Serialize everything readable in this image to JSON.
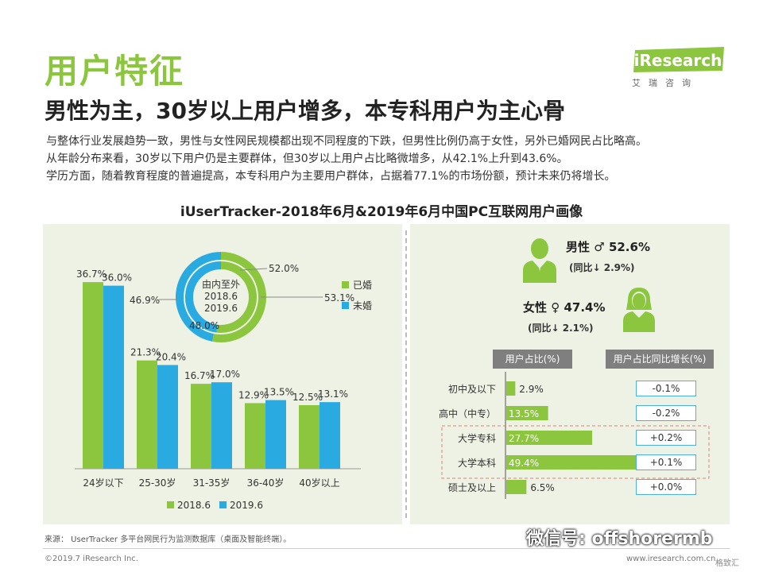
{
  "header": {
    "title": "用户特征",
    "subtitle": "男性为主，30岁以上用户增多，本专科用户为主心骨",
    "intro_lines": [
      "与整体行业发展趋势一致，男性与女性网民规模都出现不同程度的下跌，但男性比例仍高于女性，另外已婚网民占比略高。",
      "从年龄分布来看，30岁以下用户仍是主要群体，但30岁以上用户占比略微增多，从42.1%上升到43.6%。",
      "学历方面，随着教育程度的普遍提高，本专科用户为主要用户群体，占据着77.1%的市场份额，预计未来仍将增长。"
    ],
    "logo_text": "iResearch",
    "logo_sub": "艾瑞咨询"
  },
  "chart_title": "iUserTracker-2018年6月&2019年6月中国PC互联网用户画像",
  "colors": {
    "green": "#8cc63f",
    "blue": "#29abe2",
    "panel": "#eef2e4",
    "title_green": "#8cc63f"
  },
  "gender": {
    "male_label": "男性",
    "male_symbol": "♂",
    "male_value": "52.6%",
    "male_yoy": "(同比↓ 2.9%)",
    "female_label": "女性",
    "female_symbol": "♀",
    "female_value": "47.4%",
    "female_yoy": "(同比↓ 2.1%)"
  },
  "chart_data": [
    {
      "type": "donut",
      "center_text": [
        "由内至外",
        "2018.6",
        "2019.6"
      ],
      "categories": [
        "已婚",
        "未婚"
      ],
      "series": [
        {
          "name": "2018.6",
          "values": [
            52.0,
            48.0
          ]
        },
        {
          "name": "2019.6",
          "values": [
            53.1,
            46.9
          ]
        }
      ],
      "legend": [
        "已婚",
        "未婚"
      ],
      "legend_position": "right"
    },
    {
      "type": "bar",
      "categories": [
        "24岁以下",
        "25-30岁",
        "31-35岁",
        "36-40岁",
        "40岁以上"
      ],
      "series": [
        {
          "name": "2018.6",
          "values": [
            36.7,
            21.3,
            16.7,
            12.9,
            12.5
          ]
        },
        {
          "name": "2019.6",
          "values": [
            36.0,
            20.4,
            17.0,
            13.5,
            13.1
          ]
        }
      ],
      "legend_position": "bottom"
    },
    {
      "type": "bar",
      "orientation": "horizontal",
      "header_share": "用户占比(%)",
      "header_yoy": "用户占比同比增长(%)",
      "categories": [
        "初中及以下",
        "高中（中专）",
        "大学专科",
        "大学本科",
        "硕士及以上"
      ],
      "values": [
        2.9,
        13.5,
        27.7,
        49.4,
        6.5
      ],
      "value_labels": [
        "2.9%",
        "13.5%",
        "27.7%",
        "49.4%",
        "6.5%"
      ],
      "yoy_labels": [
        "-0.1%",
        "-0.2%",
        "+0.2%",
        "+0.1%",
        "+0.0%"
      ]
    }
  ],
  "footer": {
    "source": "来源：  UserTracker 多平台网民行为监测数据库（桌面及智能终端）。",
    "copyright": "©2019.7 iResearch Inc.",
    "url": "www.iresearch.com.cn",
    "watermark": "微信号: offshorermb",
    "corner": "格致汇"
  }
}
